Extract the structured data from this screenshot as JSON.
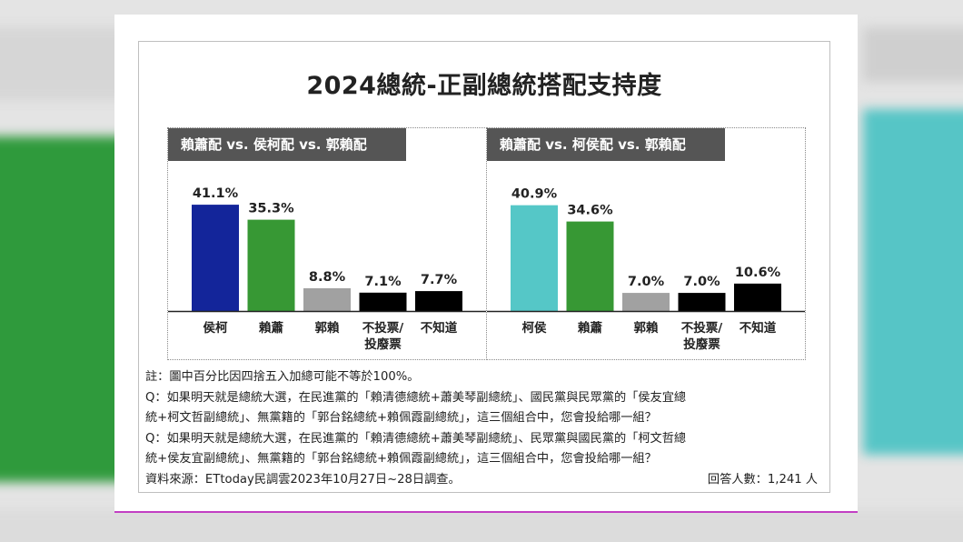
{
  "chart_data": [
    {
      "type": "bar",
      "title": "賴蕭配 vs. 侯柯配 vs. 郭賴配",
      "categories": [
        "侯柯",
        "賴蕭",
        "郭賴",
        "不投票/\n投廢票",
        "不知道"
      ],
      "values": [
        41.1,
        35.3,
        8.8,
        7.1,
        7.7
      ],
      "value_labels": [
        "41.1%",
        "35.3%",
        "8.8%",
        "7.1%",
        "7.7%"
      ],
      "colors": [
        "#13259a",
        "#379834",
        "#a1a1a1",
        "#000000",
        "#000000"
      ],
      "ylim": [
        0,
        45
      ],
      "grid": false
    },
    {
      "type": "bar",
      "title": "賴蕭配 vs. 柯侯配 vs. 郭賴配",
      "categories": [
        "柯侯",
        "賴蕭",
        "郭賴",
        "不投票/\n投廢票",
        "不知道"
      ],
      "values": [
        40.9,
        34.6,
        7.0,
        7.0,
        10.6
      ],
      "value_labels": [
        "40.9%",
        "34.6%",
        "7.0%",
        "7.0%",
        "10.6%"
      ],
      "colors": [
        "#55c7c7",
        "#379834",
        "#a1a1a1",
        "#000000",
        "#000000"
      ],
      "ylim": [
        0,
        45
      ],
      "grid": false
    }
  ],
  "header": {
    "title": "2024總統-正副總統搭配支持度"
  },
  "notes": {
    "note": "註：圖中百分比因四捨五入加總可能不等於100%。",
    "q1_line1": "Q：如果明天就是總統大選，在民進黨的「賴清德總統+蕭美琴副總統」、國民黨與民眾黨的「侯友宜總",
    "q1_line2": "統+柯文哲副總統」、無黨籍的「郭台銘總統+賴佩霞副總統」，這三個組合中，您會投給哪一組？",
    "q2_line1": "Q：如果明天就是總統大選，在民進黨的「賴清德總統+蕭美琴副總統」、民眾黨與國民黨的「柯文哲總",
    "q2_line2": "統+侯友宜副總統」、無黨籍的「郭台銘總統+賴佩霞副總統」，這三個組合中，您會投給哪一組？",
    "source": "資料來源：ETtoday民調雲2023年10月27日~28日調查。",
    "respondents": "回答人數：1,241 人"
  }
}
